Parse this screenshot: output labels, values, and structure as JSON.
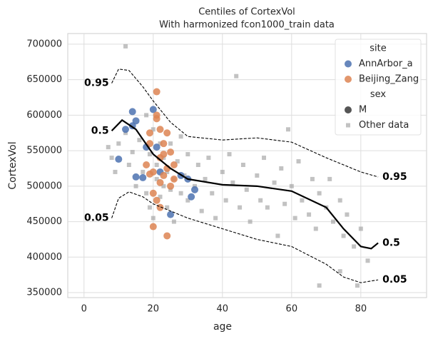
{
  "chart_data": {
    "type": "scatter",
    "title": "Centiles of CortexVol",
    "subtitle": "With harmonized fcon1000_train data",
    "x_label": "age",
    "y_label": "CortexVol",
    "xlim": [
      -4.7,
      99
    ],
    "ylim": [
      343000,
      715000
    ],
    "xticks": [
      0,
      20,
      40,
      60,
      80
    ],
    "yticks": [
      350000,
      400000,
      450000,
      500000,
      550000,
      600000,
      650000,
      700000
    ],
    "grid": true,
    "legend_position": "upper right",
    "legend_titles": [
      "site",
      "sex"
    ],
    "sex_entries": [
      {
        "name": "M",
        "color": "#555555"
      }
    ],
    "series": [
      {
        "name": "Other data",
        "color": "#999999",
        "marker": "square",
        "x": [
          7,
          8,
          9,
          10,
          12,
          12,
          13,
          14,
          15,
          16,
          17,
          18,
          18,
          19,
          19,
          20,
          20,
          21,
          21,
          22,
          22,
          23,
          23,
          24,
          24,
          25,
          25,
          26,
          26,
          27,
          28,
          28,
          29,
          30,
          30,
          32,
          33,
          34,
          35,
          36,
          37,
          38,
          40,
          41,
          42,
          43,
          44,
          45,
          46,
          47,
          48,
          50,
          51,
          52,
          53,
          55,
          56,
          57,
          58,
          60,
          61,
          62,
          63,
          65,
          66,
          67,
          68,
          70,
          71,
          72,
          74,
          75,
          76,
          78,
          79,
          80,
          82,
          68,
          74,
          59
        ],
        "values": [
          555000,
          540000,
          520000,
          560000,
          575000,
          697000,
          530000,
          548000,
          500000,
          565000,
          520000,
          490000,
          600000,
          545000,
          470000,
          580000,
          455000,
          530000,
          510000,
          560000,
          485000,
          500000,
          540000,
          470000,
          520000,
          495000,
          560000,
          510000,
          450000,
          535000,
          490000,
          570000,
          515000,
          480000,
          545000,
          500000,
          530000,
          465000,
          510000,
          540000,
          490000,
          455000,
          520000,
          480000,
          545000,
          505000,
          655000,
          470000,
          530000,
          495000,
          450000,
          515000,
          480000,
          540000,
          470000,
          505000,
          430000,
          525000,
          475000,
          500000,
          455000,
          535000,
          480000,
          460000,
          510000,
          440000,
          490000,
          470000,
          510000,
          450000,
          480000,
          430000,
          460000,
          415000,
          360000,
          440000,
          395000,
          360000,
          380000,
          580000
        ]
      },
      {
        "name": "AnnArbor_a",
        "color": "#4c72b0",
        "marker": "circle",
        "x": [
          10,
          12,
          14,
          14,
          15,
          15,
          17,
          18,
          20,
          21,
          22,
          25,
          28,
          30,
          31,
          32
        ],
        "values": [
          538000,
          580000,
          605000,
          585000,
          592000,
          513000,
          512000,
          555000,
          608000,
          555000,
          520000,
          460000,
          515000,
          510000,
          485000,
          495000
        ]
      },
      {
        "name": "Beijing_Zang",
        "color": "#dd8452",
        "marker": "circle",
        "x": [
          19,
          20,
          21,
          21,
          22,
          22,
          23,
          24,
          24,
          25,
          18,
          19,
          20,
          21,
          22,
          23,
          24,
          26,
          26,
          20,
          21,
          22,
          23,
          19,
          25
        ],
        "values": [
          517000,
          443000,
          633000,
          595000,
          580000,
          540000,
          560000,
          430000,
          525000,
          500000,
          530000,
          560000,
          490000,
          480000,
          505000,
          545000,
          575000,
          530000,
          510000,
          520000,
          600000,
          470000,
          515000,
          575000,
          548000
        ]
      }
    ],
    "centiles": [
      {
        "name": "0.95",
        "dashed": true,
        "x": [
          8,
          10,
          13,
          17,
          20,
          25,
          30,
          40,
          50,
          60,
          70,
          80,
          85
        ],
        "values": [
          645000,
          665000,
          663000,
          640000,
          620000,
          590000,
          570000,
          565000,
          568000,
          562000,
          540000,
          520000,
          513000
        ]
      },
      {
        "name": "0.5",
        "dashed": false,
        "x": [
          8,
          11,
          15,
          20,
          25,
          30,
          40,
          50,
          60,
          70,
          75,
          80,
          83,
          85
        ],
        "values": [
          578000,
          593000,
          580000,
          545000,
          525000,
          510000,
          502000,
          500000,
          493000,
          470000,
          440000,
          415000,
          412000,
          420000
        ]
      },
      {
        "name": "0.05",
        "dashed": true,
        "x": [
          8,
          10,
          13,
          17,
          20,
          30,
          40,
          50,
          60,
          70,
          75,
          80,
          85
        ],
        "values": [
          455000,
          483000,
          492000,
          485000,
          475000,
          455000,
          440000,
          425000,
          415000,
          390000,
          372000,
          364000,
          368000
        ]
      }
    ]
  }
}
